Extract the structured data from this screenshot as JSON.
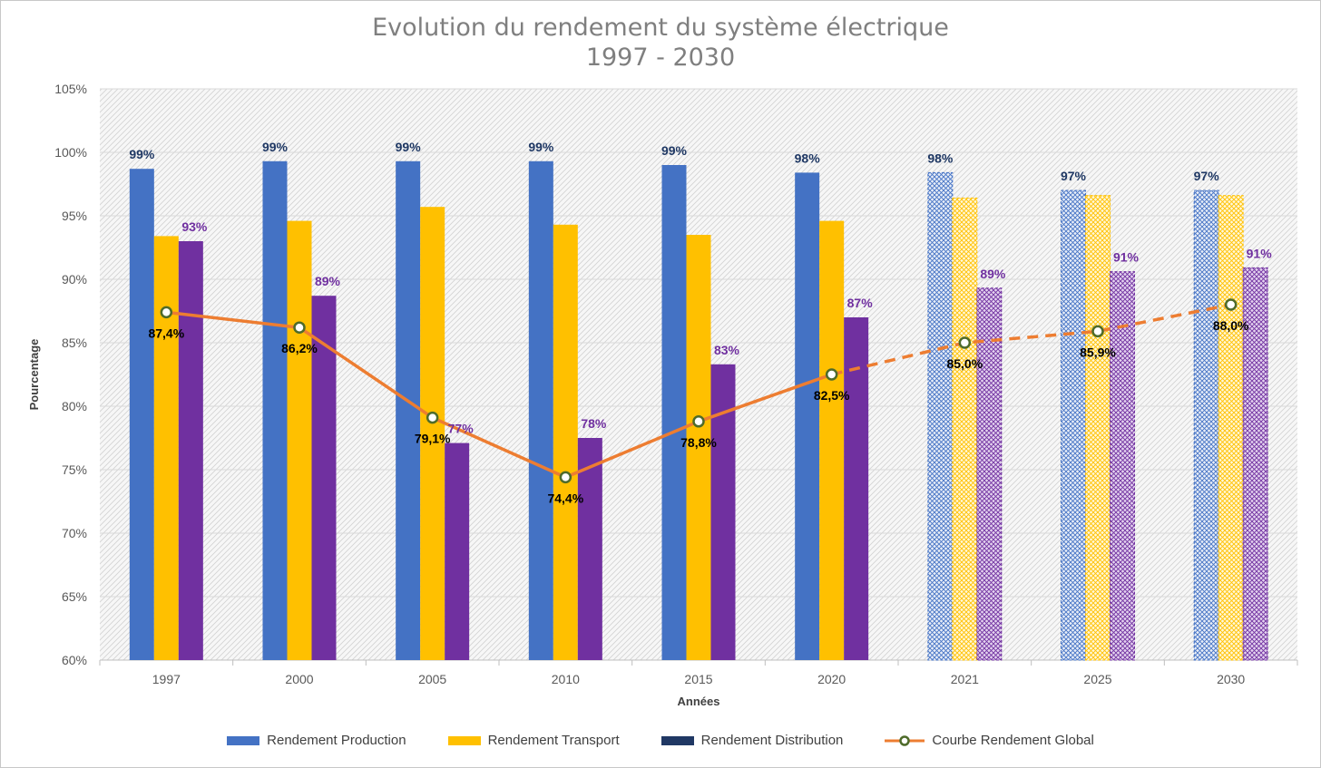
{
  "chart_data": {
    "type": "bar",
    "title": "Evolution du rendement du système électrique",
    "subtitle": "1997 - 2030",
    "xlabel": "Années",
    "ylabel": "Pourcentage",
    "ylim": [
      60,
      105
    ],
    "yticks": [
      "60%",
      "65%",
      "70%",
      "75%",
      "80%",
      "85%",
      "90%",
      "95%",
      "100%",
      "105%"
    ],
    "categories": [
      "1997",
      "2000",
      "2005",
      "2010",
      "2015",
      "2020",
      "2021",
      "2025",
      "2030"
    ],
    "projected_categories": [
      "2021",
      "2025",
      "2030"
    ],
    "grid": true,
    "legend_position": "bottom",
    "series": [
      {
        "name": "Rendement Production",
        "color": "#4472c4",
        "values": [
          98.7,
          99.3,
          99.3,
          99.3,
          99.0,
          98.4,
          98.4,
          97.0,
          97.0
        ],
        "labels": [
          "99%",
          "99%",
          "99%",
          "99%",
          "99%",
          "98%",
          "98%",
          "97%",
          "97%"
        ],
        "label_color": "#1f3864"
      },
      {
        "name": "Rendement Transport",
        "color": "#ffc000",
        "values": [
          93.4,
          94.6,
          95.7,
          94.3,
          93.5,
          94.6,
          96.4,
          96.6,
          96.6
        ],
        "labels": []
      },
      {
        "name": "Rendement Distribution",
        "color": "#7030a0",
        "legend_color": "#203864",
        "values": [
          93.0,
          88.7,
          77.1,
          77.5,
          83.3,
          87.0,
          89.3,
          90.6,
          90.9
        ],
        "labels": [
          "93%",
          "89%",
          "77%",
          "78%",
          "83%",
          "87%",
          "89%",
          "91%",
          "91%"
        ],
        "label_color": "#7030a0"
      },
      {
        "name": "Courbe Rendement Global",
        "type": "line",
        "color": "#ed7d31",
        "values": [
          87.4,
          86.2,
          79.1,
          74.4,
          78.8,
          82.5,
          85.0,
          85.9,
          88.0
        ],
        "labels": [
          "87,4%",
          "86,2%",
          "79,1%",
          "74,4%",
          "78,8%",
          "82,5%",
          "85,0%",
          "85,9%",
          "88,0%"
        ],
        "dashed_from": "2020"
      }
    ]
  }
}
